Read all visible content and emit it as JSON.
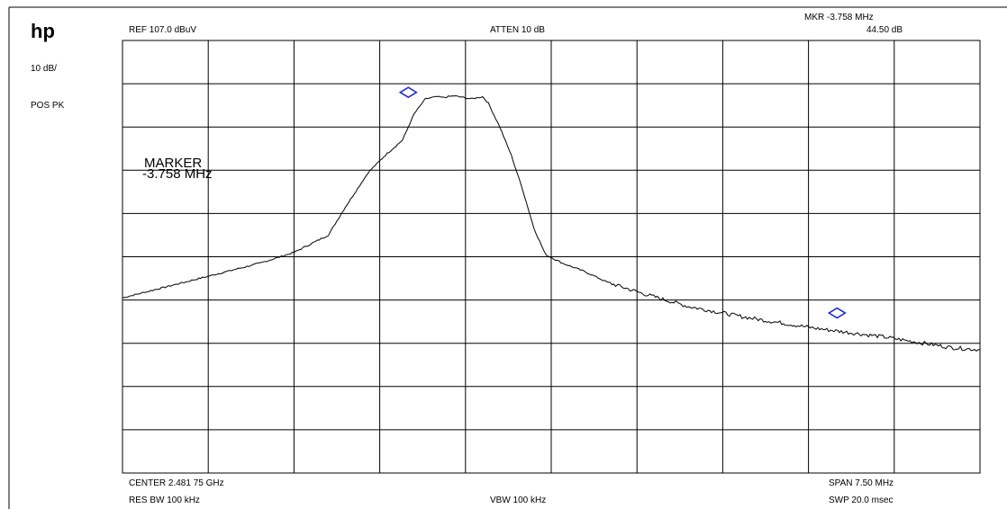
{
  "brand": "hp",
  "side_labels": {
    "scale": "10 dB/",
    "detector": "POS PK"
  },
  "header": {
    "ref": "REF  107.0 dBuV",
    "atten": "ATTEN 10 dB",
    "mkr_freq": "MKR  -3.758 MHz",
    "mkr_level": "44.50 dB"
  },
  "footer": {
    "center": "CENTER 2.481 75 GHz",
    "span": "SPAN 7.50 MHz",
    "res_bw": "RES BW 100 kHz",
    "vbw": "VBW 100 kHz",
    "swp": "SWP 20.0 msec"
  },
  "marker_annotation": {
    "title": "MARKER",
    "value": "-3.758 MHz"
  },
  "chart_data": {
    "type": "line",
    "title": "",
    "xlabel": "",
    "ylabel": "",
    "x_unit": "MHz offset from center",
    "y_unit": "dBuV",
    "xlim": [
      -3.75,
      3.75
    ],
    "ylim": [
      7.0,
      107.0
    ],
    "grid": true,
    "grid_divisions": {
      "x": 10,
      "y": 10
    },
    "series": [
      {
        "color": "#000000",
        "x": [
          -3.75,
          -3.3,
          -2.85,
          -2.55,
          -2.25,
          -1.95,
          -1.8,
          -1.6,
          -1.45,
          -1.3,
          -1.2,
          -1.1,
          -1.0,
          -0.95,
          -0.85,
          -0.7,
          -0.6,
          -0.55,
          -0.45,
          -0.35,
          -0.25,
          -0.15,
          -0.05,
          0.1,
          0.3,
          0.5,
          0.8,
          1.2,
          1.7,
          2.3,
          2.9,
          3.5,
          3.75
        ],
        "y": [
          47.5,
          50.5,
          53.5,
          55.5,
          58.0,
          62.0,
          68.5,
          76.5,
          80.5,
          84.0,
          90.0,
          93.5,
          94.0,
          93.8,
          94.2,
          93.5,
          94.0,
          92.5,
          87.0,
          80.5,
          72.5,
          63.5,
          57.5,
          55.5,
          53.5,
          51.0,
          48.5,
          45.5,
          43.0,
          40.5,
          38.5,
          36.0,
          35.5
        ]
      }
    ],
    "markers": [
      {
        "name": "reference",
        "x": -1.25,
        "y": 95.0,
        "color": "#1f2fd6"
      },
      {
        "name": "delta",
        "x": 2.5,
        "y": 44.0,
        "color": "#1f2fd6"
      }
    ]
  }
}
